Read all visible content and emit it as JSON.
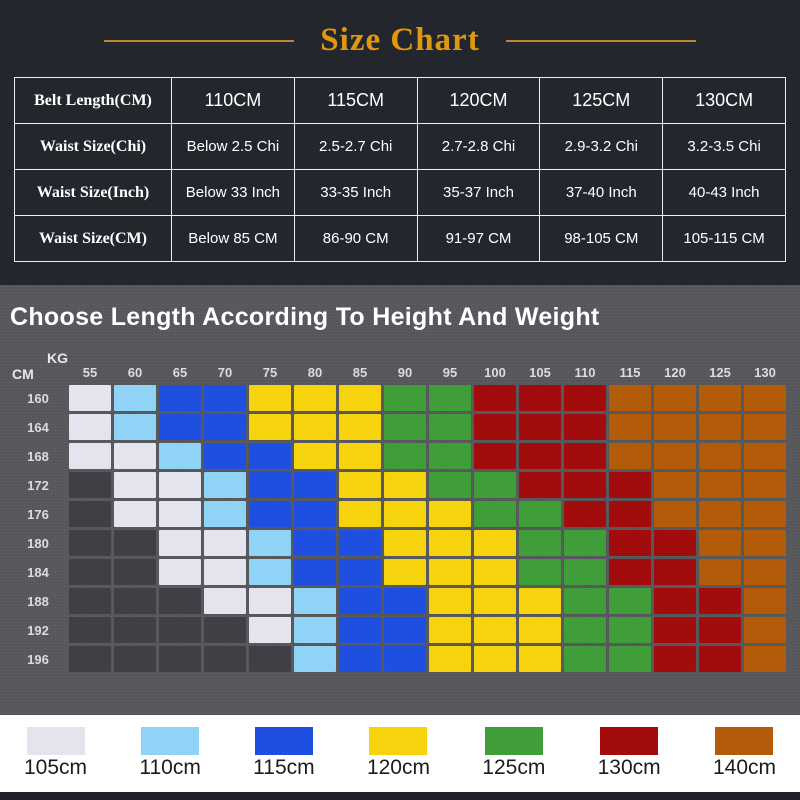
{
  "title": "Size Chart",
  "size_table": {
    "header_label": "Belt Length(CM)",
    "header_values": [
      "110CM",
      "115CM",
      "120CM",
      "125CM",
      "130CM"
    ],
    "rows": [
      {
        "label": "Waist Size(Chi)",
        "values": [
          "Below 2.5 Chi",
          "2.5-2.7 Chi",
          "2.7-2.8 Chi",
          "2.9-3.2 Chi",
          "3.2-3.5 Chi"
        ]
      },
      {
        "label": "Waist Size(Inch)",
        "values": [
          "Below 33 Inch",
          "33-35 Inch",
          "35-37 Inch",
          "37-40 Inch",
          "40-43 Inch"
        ]
      },
      {
        "label": "Waist Size(CM)",
        "values": [
          "Below 85 CM",
          "86-90 CM",
          "91-97 CM",
          "98-105 CM",
          "105-115 CM"
        ]
      }
    ]
  },
  "chart_section": {
    "heading": "Choose Length According To Height And Weight"
  },
  "chart_data": {
    "type": "heatmap",
    "title": "Choose Length According To Height And Weight",
    "x_axis_label": "KG",
    "y_axis_label": "CM",
    "x_ticks": [
      "55",
      "60",
      "65",
      "70",
      "75",
      "80",
      "85",
      "90",
      "95",
      "100",
      "105",
      "110",
      "115",
      "120",
      "125",
      "130"
    ],
    "y_ticks": [
      "160",
      "164",
      "168",
      "172",
      "176",
      "180",
      "184",
      "188",
      "192",
      "196"
    ],
    "empty_color": "#3f4046",
    "legend": [
      {
        "label": "105cm",
        "color": "#e4e4ef"
      },
      {
        "label": "110cm",
        "color": "#8fd4f6"
      },
      {
        "label": "115cm",
        "color": "#1f4fe0"
      },
      {
        "label": "120cm",
        "color": "#f5d40d"
      },
      {
        "label": "125cm",
        "color": "#3f9e38"
      },
      {
        "label": "130cm",
        "color": "#a30c0c"
      },
      {
        "label": "140cm",
        "color": "#b25b08"
      }
    ],
    "cells": [
      [
        1,
        2,
        3,
        3,
        4,
        4,
        4,
        5,
        5,
        6,
        6,
        6,
        7,
        7,
        7,
        7
      ],
      [
        1,
        2,
        3,
        3,
        4,
        4,
        4,
        5,
        5,
        6,
        6,
        6,
        7,
        7,
        7,
        7
      ],
      [
        1,
        1,
        2,
        3,
        3,
        4,
        4,
        5,
        5,
        6,
        6,
        6,
        7,
        7,
        7,
        7
      ],
      [
        0,
        1,
        1,
        2,
        3,
        3,
        4,
        4,
        5,
        5,
        6,
        6,
        6,
        7,
        7,
        7
      ],
      [
        0,
        1,
        1,
        2,
        3,
        3,
        4,
        4,
        4,
        5,
        5,
        6,
        6,
        7,
        7,
        7
      ],
      [
        0,
        0,
        1,
        1,
        2,
        3,
        3,
        4,
        4,
        4,
        5,
        5,
        6,
        6,
        7,
        7
      ],
      [
        0,
        0,
        1,
        1,
        2,
        3,
        3,
        4,
        4,
        4,
        5,
        5,
        6,
        6,
        7,
        7
      ],
      [
        0,
        0,
        0,
        1,
        1,
        2,
        3,
        3,
        4,
        4,
        4,
        5,
        5,
        6,
        6,
        7
      ],
      [
        0,
        0,
        0,
        0,
        1,
        2,
        3,
        3,
        4,
        4,
        4,
        5,
        5,
        6,
        6,
        7
      ],
      [
        0,
        0,
        0,
        0,
        0,
        2,
        3,
        3,
        4,
        4,
        4,
        5,
        5,
        6,
        6,
        7
      ]
    ]
  }
}
